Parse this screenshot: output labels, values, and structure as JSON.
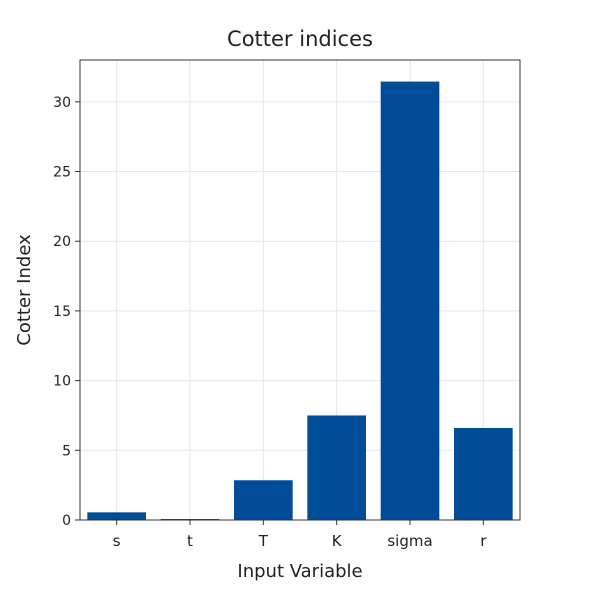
{
  "chart_data": {
    "type": "bar",
    "title": "Cotter indices",
    "xlabel": "Input Variable",
    "ylabel": "Cotter Index",
    "categories": [
      "s",
      "t",
      "T",
      "K",
      "sigma",
      "r"
    ],
    "values": [
      0.55,
      0.05,
      2.85,
      7.5,
      31.45,
      6.6
    ],
    "ylim": [
      0,
      33
    ],
    "yticks": [
      0,
      5,
      10,
      15,
      20,
      25,
      30
    ],
    "grid": true,
    "legend": "none",
    "colors": {
      "bar": "#004c99",
      "grid": "#e6e6e6",
      "axis": "#333333"
    }
  }
}
